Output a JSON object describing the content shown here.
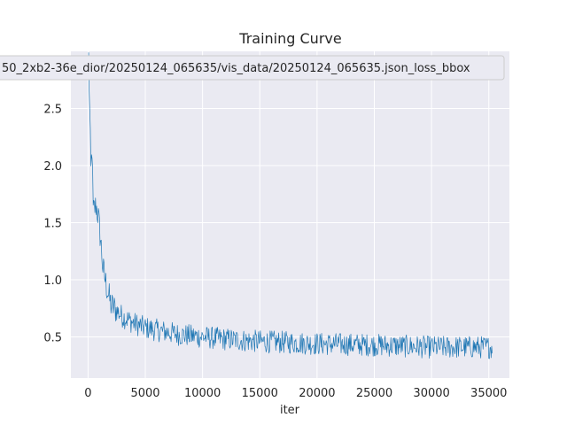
{
  "chart_data": {
    "type": "line",
    "title": "Training Curve",
    "xlabel": "iter",
    "ylabel": "",
    "xlim": [
      -1500,
      36800
    ],
    "ylim": [
      0.14,
      3.0
    ],
    "x_ticks": [
      0,
      5000,
      10000,
      15000,
      20000,
      25000,
      30000,
      35000
    ],
    "y_ticks": [
      0.5,
      1.0,
      1.5,
      2.0,
      2.5
    ],
    "grid": true,
    "legend_position": "top",
    "colors": {
      "series": "#1f77b4",
      "plot_bg": "#eaeaf2",
      "grid": "#ffffff",
      "text": "#262626"
    },
    "series": [
      {
        "name": "50_2xb2-36e_dior/20250124_065635/vis_data/20250124_065635.json_loss_bbox",
        "x_start": 50,
        "x_step": 50,
        "x_end": 35300,
        "anchors": [
          [
            50,
            2.95
          ],
          [
            200,
            2.2
          ],
          [
            250,
            1.95
          ],
          [
            350,
            2.15
          ],
          [
            450,
            1.6
          ],
          [
            700,
            1.65
          ],
          [
            900,
            1.55
          ],
          [
            1100,
            1.35
          ],
          [
            1300,
            1.1
          ],
          [
            1600,
            0.95
          ],
          [
            2000,
            0.78
          ],
          [
            3000,
            0.68
          ],
          [
            4000,
            0.62
          ],
          [
            5000,
            0.58
          ],
          [
            6000,
            0.56
          ],
          [
            8000,
            0.52
          ],
          [
            10000,
            0.5
          ],
          [
            12000,
            0.48
          ],
          [
            15000,
            0.46
          ],
          [
            18000,
            0.45
          ],
          [
            20000,
            0.44
          ],
          [
            25000,
            0.43
          ],
          [
            30000,
            0.41
          ],
          [
            35300,
            0.41
          ]
        ],
        "noise_amplitude": 0.1
      }
    ]
  }
}
